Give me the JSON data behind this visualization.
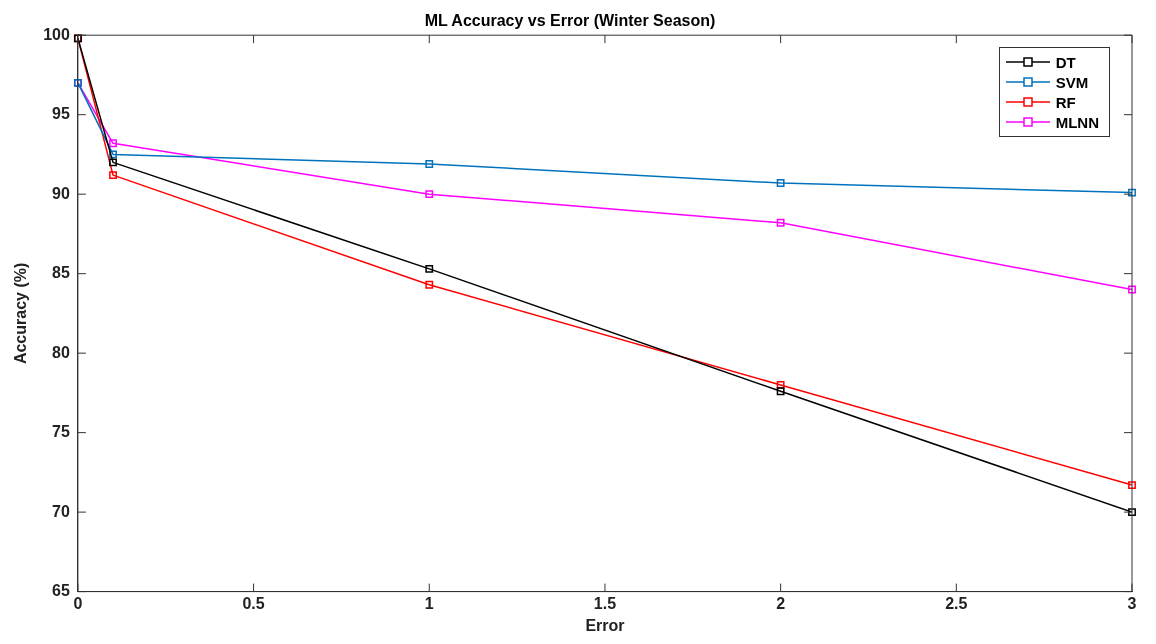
{
  "chart_data": {
    "type": "line",
    "title": "ML Accuracy vs Error (Winter Season)",
    "xlabel": "Error",
    "ylabel": "Accuracy (%)",
    "x": [
      0,
      0.1,
      1,
      2,
      3
    ],
    "series": [
      {
        "name": "DT",
        "color": "#000000",
        "values": [
          99.8,
          92.0,
          85.3,
          77.6,
          70.0
        ]
      },
      {
        "name": "SVM",
        "color": "#0072bd",
        "values": [
          97.0,
          92.5,
          91.9,
          90.7,
          90.1
        ]
      },
      {
        "name": "RF",
        "color": "#ff0000",
        "values": [
          99.8,
          91.2,
          84.3,
          78.0,
          71.7
        ]
      },
      {
        "name": "MLNN",
        "color": "#ff00ff",
        "values": [
          97.0,
          93.2,
          90.0,
          88.2,
          84.0
        ]
      }
    ],
    "xlim": [
      0,
      3
    ],
    "xticks": [
      0,
      0.5,
      1,
      1.5,
      2,
      2.5,
      3
    ],
    "ylim": [
      65,
      100
    ],
    "yticks": [
      65,
      70,
      75,
      80,
      85,
      90,
      95,
      100
    ],
    "grid": false,
    "legend": "top right",
    "marker": "square",
    "line_style": "solid"
  }
}
